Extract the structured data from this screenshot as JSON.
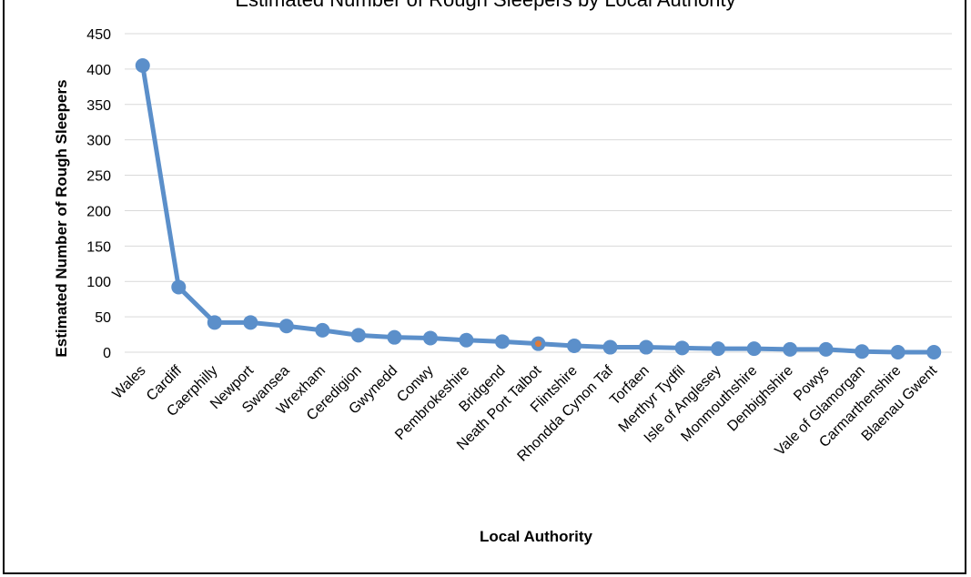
{
  "chart_data": {
    "type": "line",
    "title": "Estimated Number of Rough Sleepers by Local Authority",
    "xlabel": "Local Authority",
    "ylabel": "Estimated Number of Rough Sleepers",
    "ylim": [
      0,
      450
    ],
    "yticks": [
      "0",
      "50",
      "100",
      "150",
      "200",
      "250",
      "300",
      "350",
      "400",
      "450"
    ],
    "grid": true,
    "line_color": "#5b8fca",
    "highlight_color": "#e07b39",
    "highlight_category": "Neath Port Talbot",
    "categories": [
      "Wales",
      "Cardiff",
      "Caerphilly",
      "Newport",
      "Swansea",
      "Wrexham",
      "Ceredigion",
      "Gwynedd",
      "Conwy",
      "Pembrokeshire",
      "Bridgend",
      "Neath Port Talbot",
      "Flintshire",
      "Rhondda Cynon Taf",
      "Torfaen",
      "Merthyr Tydfil",
      "Isle of Anglesey",
      "Monmouthshire",
      "Denbighshire",
      "Powys",
      "Vale of Glamorgan",
      "Carmarthenshire",
      "Blaenau Gwent"
    ],
    "series": [
      {
        "values": [
          405,
          92,
          42,
          42,
          37,
          31,
          24,
          21,
          20,
          17,
          15,
          12,
          9,
          7,
          7,
          6,
          5,
          5,
          4,
          4,
          1,
          0,
          0
        ]
      }
    ]
  }
}
